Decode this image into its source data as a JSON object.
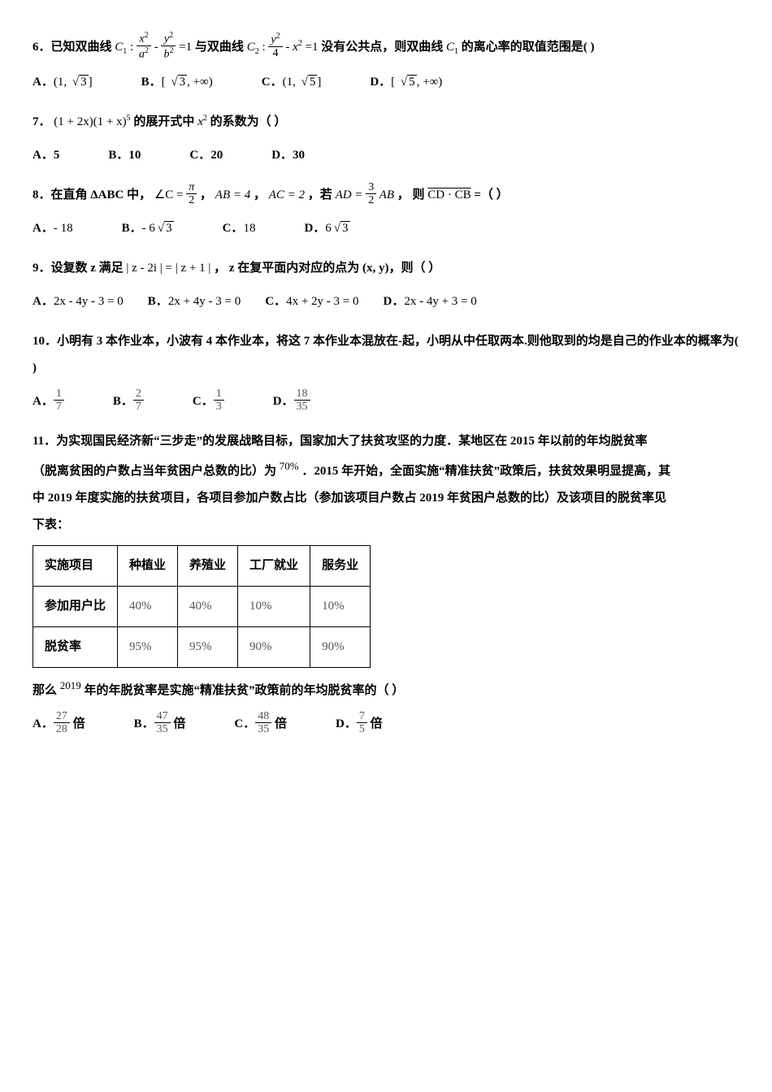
{
  "q6": {
    "stem_a": "6．已知双曲线",
    "c1a": "C",
    "c1b": "1",
    "colon1": " : ",
    "x2": "x",
    "x2e": "2",
    "a2": "a",
    "a2e": "2",
    "minus1": " - ",
    "y2": "y",
    "y2e": "2",
    "b2": "b",
    "b2e": "2",
    "eq1": " =1 ",
    "stem_b": "与双曲线",
    "c2a": "C",
    "c2b": "2",
    "colon2": " : ",
    "y22": "y",
    "y22e": "2",
    "four": "4",
    "minus2": " - ",
    "x22": "x",
    "x22e": "2",
    "eq2": " =1 ",
    "stem_c": "没有公共点，则双曲线",
    "c1c": "C",
    "c1d": "1",
    "stem_d": " 的离心率的取值范围是(    )",
    "optA_pre": "(1, ",
    "optA_r": "3",
    "optA_post": "]",
    "optB_pre": "[ ",
    "optB_r": "3",
    "optB_post": ", +∞)",
    "optC_pre": "(1, ",
    "optC_r": "5",
    "optC_post": "]",
    "optD_pre": "[ ",
    "optD_r": "5",
    "optD_post": ", +∞)"
  },
  "q7": {
    "stem_a": "7．",
    "expr_a": "(1 + 2x)(1 + x)",
    "exp5": "5",
    "stem_b": " 的展开式中 ",
    "x": "x",
    "xe": "2",
    "stem_c": " 的系数为（    ）",
    "A": "A．5",
    "B": "B．10",
    "C": "C．20",
    "D": "D．30"
  },
  "q8": {
    "stem_a": "8．在直角 ΔABC 中，",
    "angC": "∠C = ",
    "pi": "π",
    "two": "2",
    "comma1": "，  ",
    "ab": "AB = 4",
    "comma2": "，  ",
    "ac": "AC = 2",
    "comma3": " ，若 ",
    "ad": "AD = ",
    "three": "3",
    "two2": "2",
    "abv": " AB",
    "stem_b": "， 则 ",
    "cdcb": "CD · CB",
    "stem_c": " =（    ）",
    "A": "- 18",
    "Bpre": "- 6",
    "Br": "3",
    "C": "18",
    "Dpre": "6",
    "Dr": "3"
  },
  "q9": {
    "stem_a": "9．设复数 z 满足 ",
    "abs1a": "| z - 2i |",
    "eq": " = ",
    "abs1b": "| z + 1 |",
    "stem_b": "， z 在复平面内对应的点为 (x, y)，则（    ）",
    "A": "2x - 4y - 3 = 0",
    "B": "2x + 4y - 3 = 0",
    "C": "4x + 2y - 3 = 0",
    "D": "2x - 4y + 3 = 0"
  },
  "q10": {
    "stem": "10．小明有 3 本作业本，小波有 4 本作业本，将这 7 本作业本混放在-起，小明从中任取两本.则他取到的均是自己的作业本的概率为(    )",
    "An": "1",
    "Ad": "7",
    "Bn": "2",
    "Bd": "7",
    "Cn": "1",
    "Cd": "3",
    "Dn": "18",
    "Dd": "35"
  },
  "q11": {
    "p1a": "11．为实现国民经济新“三步走”的发展战略目标，国家加大了扶贫攻坚的力度．某地区在 2015 年以前的年均脱贫率",
    "p2a": "（脱离贫困的户数占当年贫困户总数的比）为 ",
    "pct70": "70%",
    "p2b": " ．2015 年开始，全面实施“精准扶贫”政策后，扶贫效果明显提高，其",
    "p3": "中 2019 年度实施的扶贫项目，各项目参加户数占比（参加该项目户数占 2019 年贫困户总数的比）及该项目的脱贫率见",
    "p4": "下表：",
    "table": {
      "h1": "实施项目",
      "h2": "种植业",
      "h3": "养殖业",
      "h4": "工厂就业",
      "h5": "服务业",
      "r1": "参加用户比",
      "r1c": [
        "40%",
        "40%",
        "10%",
        "10%"
      ],
      "r2": "脱贫率",
      "r2c": [
        "95%",
        "95%",
        "90%",
        "90%"
      ]
    },
    "p5a": "那么 ",
    "y2019": "2019",
    "p5b": " 年的年脱贫率是实施“精准扶贫”政策前的年均脱贫率的（    ）",
    "An": "27",
    "Ad": "28",
    "Asuf": " 倍",
    "Bn": "47",
    "Bd": "35",
    "Bsuf": " 倍",
    "Cn": "48",
    "Cd": "35",
    "Csuf": " 倍",
    "Dn": "7",
    "Dd": "5",
    "Dsuf": " 倍"
  },
  "labels": {
    "A": "A．",
    "B": "B．",
    "C": "C．",
    "D": "D．"
  }
}
